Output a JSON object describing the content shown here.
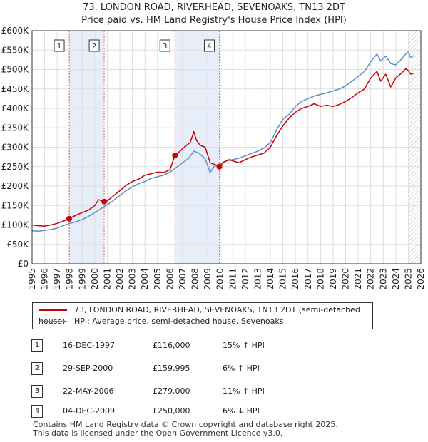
{
  "title": {
    "line1": "73, LONDON ROAD, RIVERHEAD, SEVENOAKS, TN13 2DT",
    "line2": "Price paid vs. HM Land Registry's House Price Index (HPI)"
  },
  "chart_data": {
    "type": "line",
    "title": "73, LONDON ROAD, RIVERHEAD, SEVENOAKS, TN13 2DT — Price paid vs. HM Land Registry's House Price Index (HPI)",
    "xlim": [
      1995,
      2026
    ],
    "ylim": [
      0,
      600000
    ],
    "x_ticks": [
      1995,
      1996,
      1997,
      1998,
      1999,
      2000,
      2001,
      2002,
      2003,
      2004,
      2005,
      2006,
      2007,
      2008,
      2009,
      2010,
      2011,
      2012,
      2013,
      2014,
      2015,
      2016,
      2017,
      2018,
      2019,
      2020,
      2021,
      2022,
      2023,
      2024,
      2025,
      2026
    ],
    "y_ticks": [
      {
        "value": 0,
        "label": "£0"
      },
      {
        "value": 50000,
        "label": "£50K"
      },
      {
        "value": 100000,
        "label": "£100K"
      },
      {
        "value": 150000,
        "label": "£150K"
      },
      {
        "value": 200000,
        "label": "£200K"
      },
      {
        "value": 250000,
        "label": "£250K"
      },
      {
        "value": 300000,
        "label": "£300K"
      },
      {
        "value": 350000,
        "label": "£350K"
      },
      {
        "value": 400000,
        "label": "£400K"
      },
      {
        "value": 450000,
        "label": "£450K"
      },
      {
        "value": 500000,
        "label": "£500K"
      },
      {
        "value": 550000,
        "label": "£550K"
      },
      {
        "value": 600000,
        "label": "£600K"
      }
    ],
    "grid": true,
    "series": [
      {
        "name": "73, LONDON ROAD, RIVERHEAD, SEVENOAKS, TN13 2DT (semi-detached house)",
        "color": "#cc0000",
        "x": [
          1995.0,
          1995.5,
          1996.0,
          1996.5,
          1997.0,
          1997.5,
          1997.96,
          1998.5,
          1999.0,
          1999.5,
          2000.0,
          2000.3,
          2000.75,
          2001.0,
          2001.5,
          2002.0,
          2002.5,
          2003.0,
          2003.5,
          2004.0,
          2004.5,
          2005.0,
          2005.5,
          2006.0,
          2006.39,
          2006.8,
          2007.2,
          2007.6,
          2007.9,
          2008.1,
          2008.4,
          2008.8,
          2009.2,
          2009.6,
          2009.93,
          2010.3,
          2010.7,
          2011.0,
          2011.5,
          2012.0,
          2012.5,
          2013.0,
          2013.5,
          2014.0,
          2014.5,
          2015.0,
          2015.5,
          2016.0,
          2016.5,
          2017.0,
          2017.5,
          2018.0,
          2018.5,
          2019.0,
          2019.5,
          2020.0,
          2020.5,
          2021.0,
          2021.5,
          2022.0,
          2022.5,
          2022.8,
          2023.2,
          2023.6,
          2024.0,
          2024.5,
          2024.8,
          2025.0,
          2025.2,
          2025.4
        ],
        "y": [
          100000,
          98000,
          97000,
          100000,
          104000,
          110000,
          116000,
          125000,
          132000,
          138000,
          150000,
          165000,
          159995,
          162000,
          175000,
          188000,
          202000,
          212000,
          218000,
          228000,
          232000,
          236000,
          235000,
          242000,
          279000,
          290000,
          302000,
          312000,
          340000,
          318000,
          305000,
          300000,
          260000,
          255000,
          250000,
          262000,
          268000,
          265000,
          260000,
          268000,
          275000,
          280000,
          285000,
          300000,
          330000,
          355000,
          375000,
          390000,
          400000,
          405000,
          412000,
          405000,
          408000,
          405000,
          410000,
          418000,
          428000,
          440000,
          450000,
          478000,
          495000,
          470000,
          488000,
          455000,
          478000,
          492000,
          502000,
          497000,
          488000,
          490000
        ]
      },
      {
        "name": "HPI: Average price, semi-detached house, Sevenoaks",
        "color": "#5b8fd0",
        "x": [
          1995.0,
          1995.5,
          1996.0,
          1996.5,
          1997.0,
          1997.5,
          1998.0,
          1998.5,
          1999.0,
          1999.5,
          2000.0,
          2000.5,
          2001.0,
          2001.5,
          2002.0,
          2002.5,
          2003.0,
          2003.5,
          2004.0,
          2004.5,
          2005.0,
          2005.5,
          2006.0,
          2006.5,
          2007.0,
          2007.5,
          2007.9,
          2008.3,
          2008.8,
          2009.2,
          2009.5,
          2010.0,
          2010.5,
          2011.0,
          2011.5,
          2012.0,
          2012.5,
          2013.0,
          2013.5,
          2014.0,
          2014.5,
          2015.0,
          2015.5,
          2016.0,
          2016.5,
          2017.0,
          2017.5,
          2018.0,
          2018.5,
          2019.0,
          2019.5,
          2020.0,
          2020.5,
          2021.0,
          2021.5,
          2022.0,
          2022.5,
          2022.8,
          2023.2,
          2023.6,
          2024.0,
          2024.5,
          2024.8,
          2025.0,
          2025.2,
          2025.4
        ],
        "y": [
          85000,
          84000,
          86000,
          88000,
          92000,
          98000,
          104000,
          108000,
          114000,
          122000,
          132000,
          142000,
          152000,
          163000,
          176000,
          188000,
          198000,
          206000,
          212000,
          220000,
          224000,
          228000,
          236000,
          248000,
          260000,
          272000,
          290000,
          285000,
          270000,
          235000,
          250000,
          258000,
          265000,
          268000,
          272000,
          278000,
          284000,
          290000,
          298000,
          312000,
          345000,
          372000,
          385000,
          405000,
          418000,
          425000,
          432000,
          436000,
          440000,
          445000,
          450000,
          458000,
          470000,
          482000,
          495000,
          520000,
          540000,
          522000,
          535000,
          515000,
          512000,
          528000,
          540000,
          545000,
          530000,
          535000
        ]
      }
    ],
    "sales": [
      {
        "id": "1",
        "x": 1997.96,
        "y": 116000
      },
      {
        "id": "2",
        "x": 2000.75,
        "y": 159995
      },
      {
        "id": "3",
        "x": 2006.39,
        "y": 279000
      },
      {
        "id": "4",
        "x": 2009.93,
        "y": 250000
      }
    ],
    "shaded_periods": [
      [
        1997.96,
        2000.75
      ],
      [
        2006.39,
        2009.93
      ]
    ],
    "forecast_start": 2025.0,
    "forecast_end": 2026.0
  },
  "legend": {
    "items": [
      {
        "label": "73, LONDON ROAD, RIVERHEAD, SEVENOAKS, TN13 2DT (semi-detached house)",
        "color": "#cc0000"
      },
      {
        "label": "HPI: Average price, semi-detached house, Sevenoaks",
        "color": "#5b8fd0"
      }
    ]
  },
  "transactions": [
    {
      "id": "1",
      "date": "16-DEC-1997",
      "price": "£116,000",
      "hpi": "15% ↑ HPI"
    },
    {
      "id": "2",
      "date": "29-SEP-2000",
      "price": "£159,995",
      "hpi": "6% ↑ HPI"
    },
    {
      "id": "3",
      "date": "22-MAY-2006",
      "price": "£279,000",
      "hpi": "11% ↑ HPI"
    },
    {
      "id": "4",
      "date": "04-DEC-2009",
      "price": "£250,000",
      "hpi": "6% ↓ HPI"
    }
  ],
  "footer": {
    "line1": "Contains HM Land Registry data © Crown copyright and database right 2025.",
    "line2": "This data is licensed under the Open Government Licence v3.0."
  }
}
